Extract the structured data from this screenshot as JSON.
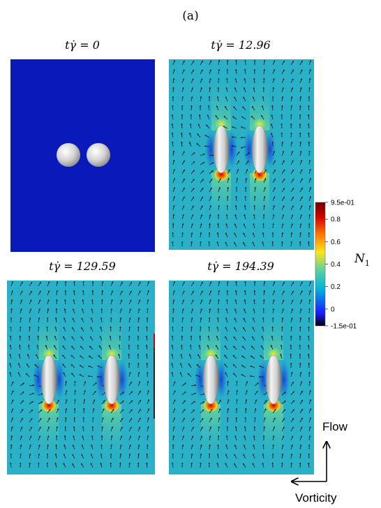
{
  "figure_label": "(a)",
  "panels": [
    {
      "time_label": "tγ̇ = 0",
      "state": "spheres"
    },
    {
      "time_label": "tγ̇ = 12.96",
      "state": "elongated"
    },
    {
      "time_label": "tγ̇ = 129.59",
      "state": "elongated"
    },
    {
      "time_label": "tγ̇ = 194.39",
      "state": "elongated"
    }
  ],
  "colorbar": {
    "variable": "N",
    "variable_subscript": "1",
    "ticks": [
      "9.5e-01",
      "0.8",
      "0.6",
      "0.4",
      "0.2",
      "0",
      "-1.5e-01"
    ],
    "min": -0.15,
    "max": 0.95,
    "colors": [
      "#000000",
      "#1a1aff",
      "#00b4d8",
      "#5ad1a0",
      "#ffe619",
      "#ff6f00",
      "#d40000",
      "#6b0000"
    ]
  },
  "axes": {
    "flow_label": "Flow",
    "vorticity_label": "Vorticity"
  },
  "colors": {
    "panel_blue": "#0a19b9",
    "field_cyan": "#2ab1c8",
    "particle": "#d6d6d6"
  }
}
